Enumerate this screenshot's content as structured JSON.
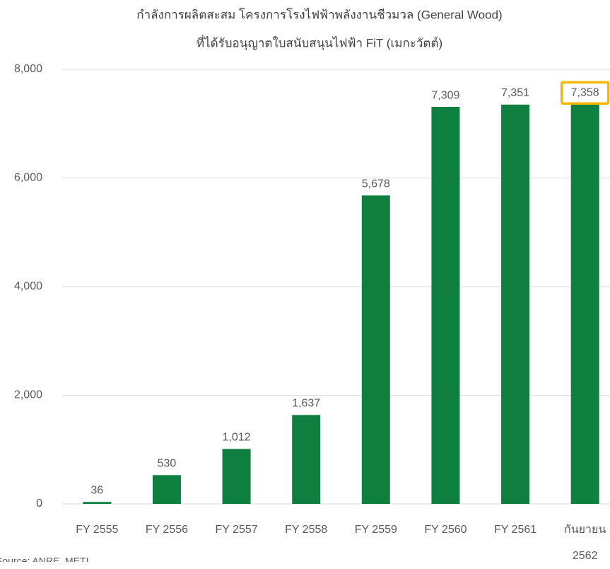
{
  "chart_data": {
    "type": "bar",
    "title": [
      "กำลังการผลิตสะสม โครงการโรงไฟฟ้าพลังงานชีวมวล (General Wood)",
      "ที่ได้รับอนุญาตใบสนับสนุนไฟฟ้า FiT (เมกะวัตต์)"
    ],
    "categories": [
      "FY 2555",
      "FY 2556",
      "FY 2557",
      "FY 2558",
      "FY 2559",
      "FY 2560",
      "FY 2561",
      "กันยายน 2562"
    ],
    "values": [
      36,
      530,
      1012,
      1637,
      5678,
      7309,
      7351,
      7358
    ],
    "value_labels": [
      "36",
      "530",
      "1,012",
      "1,637",
      "5,678",
      "7,309",
      "7,351",
      "7,358"
    ],
    "color": "#0f7f3f",
    "ylim": [
      0,
      8000
    ],
    "yticks": [
      0,
      {
        "value": 2000,
        "label": "2,000"
      },
      {
        "value": 4000,
        "label": "4,000"
      },
      {
        "value": 6000,
        "label": "6,000"
      },
      {
        "value": 8000,
        "label": "8,000"
      }
    ],
    "grid": true,
    "highlight_index": 7,
    "highlight_color": "#f5b800",
    "source": "Source: ANRE, METI"
  }
}
